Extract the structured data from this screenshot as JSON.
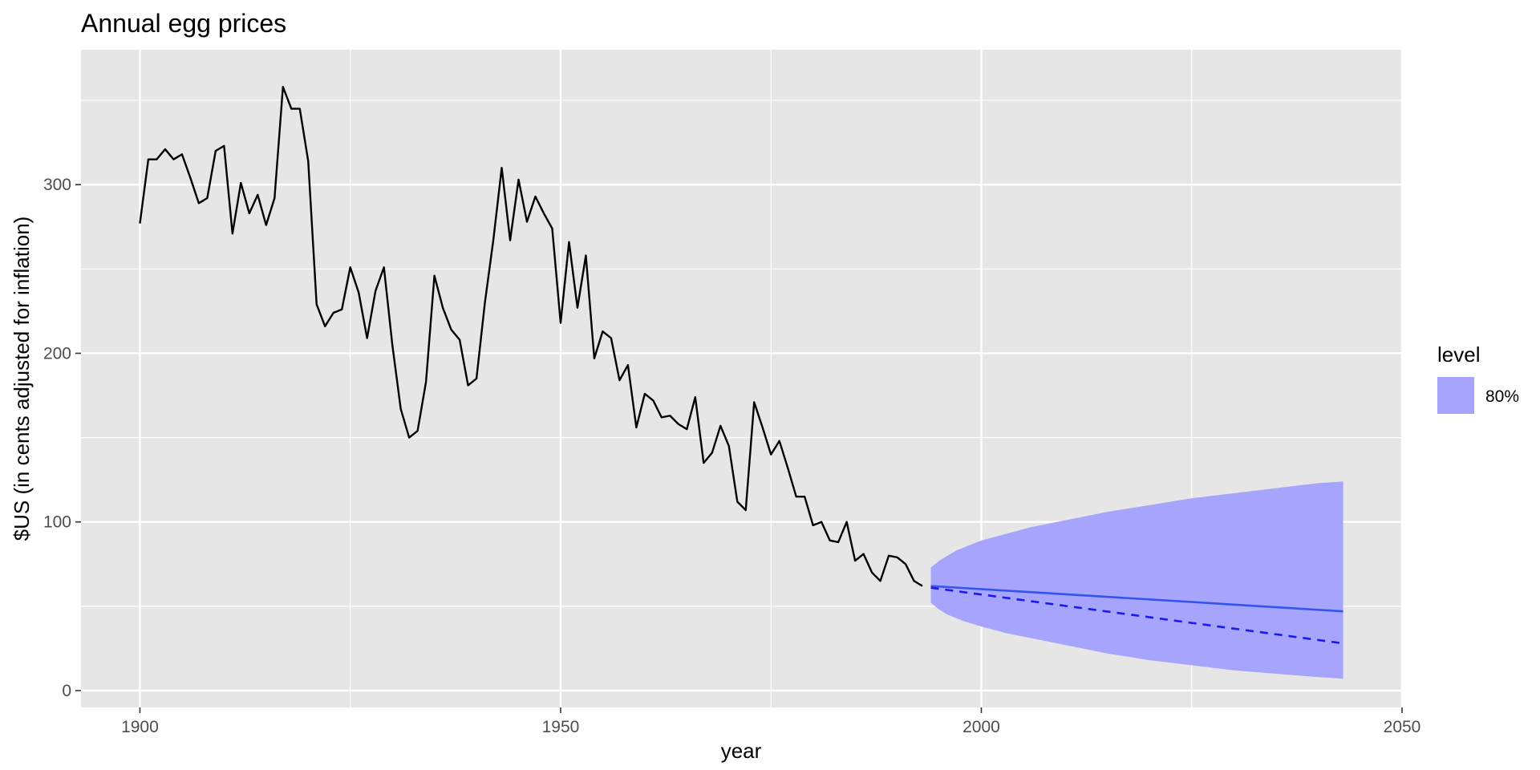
{
  "chart_data": {
    "type": "line",
    "title": "Annual egg prices",
    "xlabel": "year",
    "ylabel": "$US (in cents adjusted for inflation)",
    "xlim": [
      1893,
      2050
    ],
    "ylim": [
      -10,
      380
    ],
    "x_ticks": [
      1900,
      1950,
      2000,
      2050
    ],
    "y_ticks": [
      0,
      100,
      200,
      300
    ],
    "grid": true,
    "legend": {
      "title": "level",
      "placement": "right",
      "entries": [
        {
          "label": "80%",
          "color": "#a6a4fd"
        }
      ]
    },
    "colors": {
      "panel": "#e6e6e6",
      "grid": "#ffffff",
      "observed": "#000000",
      "forecast_mean": "#3355ee",
      "forecast_median": "#1a1aee",
      "interval": "#a6a4fd"
    },
    "series": [
      {
        "kind": "observed",
        "x": [
          1900,
          1901,
          1902,
          1903,
          1904,
          1905,
          1906,
          1907,
          1908,
          1909,
          1910,
          1911,
          1912,
          1913,
          1914,
          1915,
          1916,
          1917,
          1918,
          1919,
          1920,
          1921,
          1922,
          1923,
          1924,
          1925,
          1926,
          1927,
          1928,
          1929,
          1930,
          1931,
          1932,
          1933,
          1934,
          1935,
          1936,
          1937,
          1938,
          1939,
          1940,
          1941,
          1942,
          1943,
          1944,
          1945,
          1946,
          1947,
          1948,
          1949,
          1950,
          1951,
          1952,
          1953,
          1954,
          1955,
          1956,
          1957,
          1958,
          1959,
          1960,
          1961,
          1962,
          1963,
          1964,
          1965,
          1966,
          1967,
          1968,
          1969,
          1970,
          1971,
          1972,
          1973,
          1974,
          1975,
          1976,
          1977,
          1978,
          1979,
          1980,
          1981,
          1982,
          1983,
          1984,
          1985,
          1986,
          1987,
          1988,
          1989,
          1990,
          1991,
          1992,
          1993
        ],
        "values": [
          277,
          315,
          315,
          321,
          315,
          318,
          304,
          289,
          292,
          320,
          323,
          271,
          301,
          283,
          294,
          276,
          292,
          358,
          345,
          345,
          314,
          229,
          216,
          224,
          226,
          251,
          236,
          209,
          237,
          251,
          205,
          167,
          150,
          154,
          183,
          246,
          227,
          214,
          208,
          181,
          185,
          230,
          267,
          310,
          267,
          303,
          278,
          293,
          283,
          274,
          218,
          266,
          227,
          258,
          197,
          213,
          209,
          184,
          193,
          156,
          176,
          172,
          162,
          163,
          158,
          155,
          174,
          135,
          141,
          157,
          145,
          112,
          107,
          171,
          156,
          140,
          148,
          132,
          115,
          115,
          98,
          100,
          89,
          88,
          100,
          77,
          81,
          70,
          65,
          80,
          79,
          75,
          65,
          62
        ]
      },
      {
        "kind": "forecast_mean",
        "x": [
          1994,
          2043
        ],
        "values": [
          62,
          47
        ]
      },
      {
        "kind": "forecast_median",
        "x": [
          1994,
          2043
        ],
        "values": [
          61,
          28
        ]
      },
      {
        "kind": "interval_80",
        "x": [
          1994,
          1995,
          1996,
          1997,
          1998,
          2000,
          2003,
          2006,
          2010,
          2015,
          2020,
          2025,
          2030,
          2035,
          2040,
          2043
        ],
        "lower": [
          52,
          48,
          45,
          43,
          41,
          38,
          34,
          31,
          27,
          22,
          18,
          15,
          12,
          10,
          8,
          7
        ],
        "upper": [
          73,
          77,
          80,
          83,
          85,
          89,
          93,
          97,
          101,
          106,
          110,
          114,
          117,
          120,
          123,
          124
        ]
      }
    ]
  }
}
